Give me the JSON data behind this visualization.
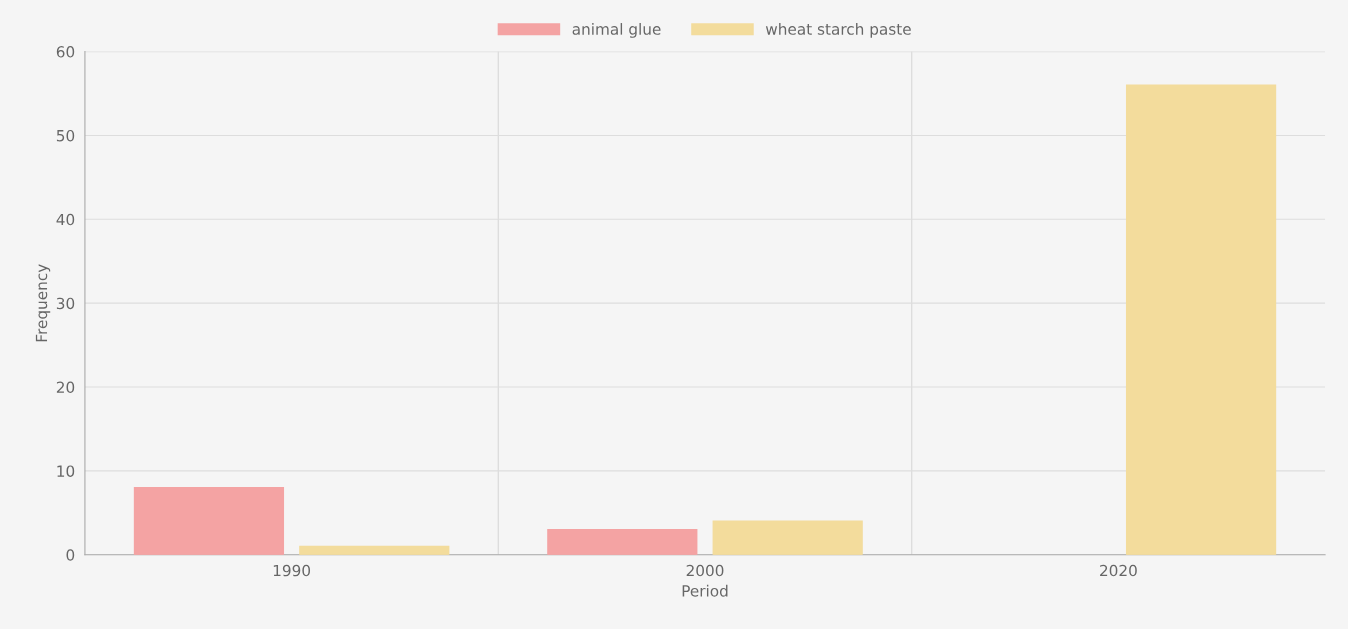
{
  "chart_data": {
    "type": "bar",
    "xlabel": "Period",
    "ylabel": "Frequency",
    "categories": [
      "1990",
      "2000",
      "2020"
    ],
    "series": [
      {
        "name": "animal glue",
        "color": "#f4a3a3",
        "values": [
          8,
          3,
          null
        ]
      },
      {
        "name": "wheat starch paste",
        "color": "#f3dc9c",
        "values": [
          1,
          4,
          56
        ]
      }
    ],
    "ylim": [
      0,
      60
    ],
    "yticks": [
      0,
      10,
      20,
      30,
      40,
      50,
      60
    ],
    "grid": true,
    "legend": "top"
  }
}
